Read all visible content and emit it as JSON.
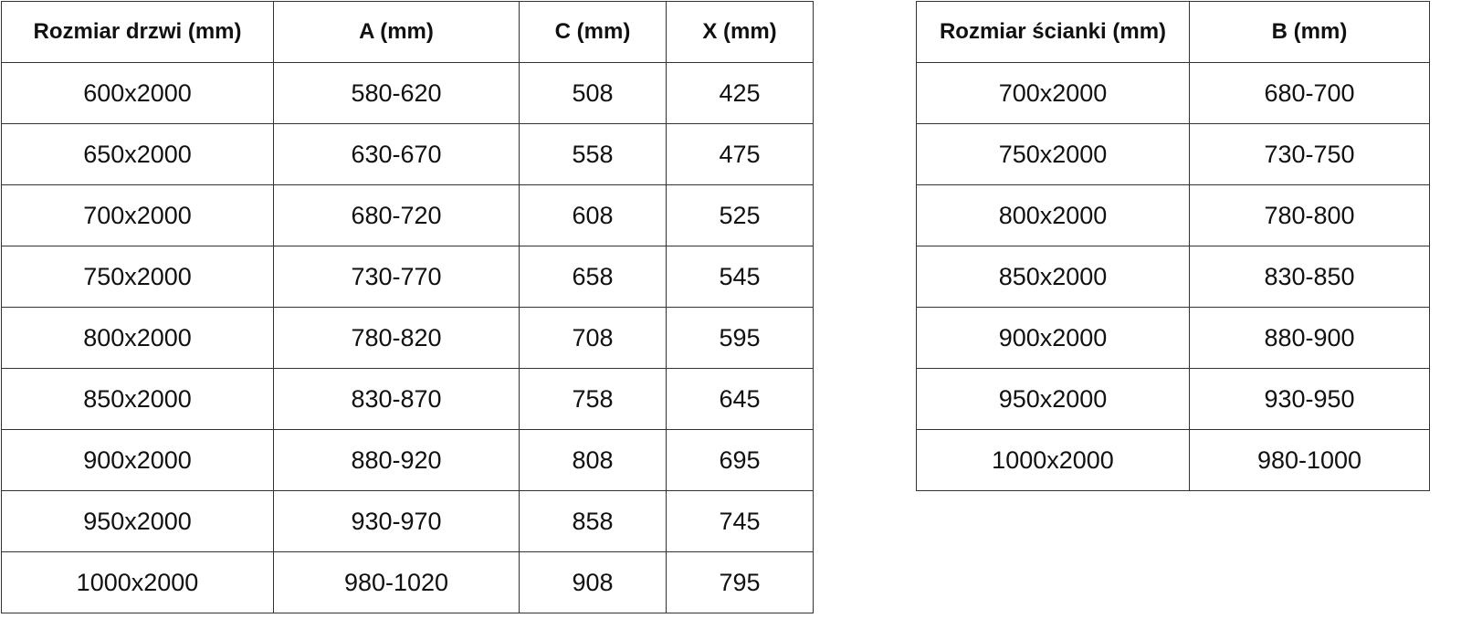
{
  "door_table": {
    "headers": [
      "Rozmiar drzwi (mm)",
      "A (mm)",
      "C (mm)",
      "X (mm)"
    ],
    "rows": [
      [
        "600x2000",
        "580-620",
        "508",
        "425"
      ],
      [
        "650x2000",
        "630-670",
        "558",
        "475"
      ],
      [
        "700x2000",
        "680-720",
        "608",
        "525"
      ],
      [
        "750x2000",
        "730-770",
        "658",
        "545"
      ],
      [
        "800x2000",
        "780-820",
        "708",
        "595"
      ],
      [
        "850x2000",
        "830-870",
        "758",
        "645"
      ],
      [
        "900x2000",
        "880-920",
        "808",
        "695"
      ],
      [
        "950x2000",
        "930-970",
        "858",
        "745"
      ],
      [
        "1000x2000",
        "980-1020",
        "908",
        "795"
      ]
    ]
  },
  "wall_table": {
    "headers": [
      "Rozmiar ścianki (mm)",
      "B (mm)"
    ],
    "rows": [
      [
        "700x2000",
        "680-700"
      ],
      [
        "750x2000",
        "730-750"
      ],
      [
        "800x2000",
        "780-800"
      ],
      [
        "850x2000",
        "830-850"
      ],
      [
        "900x2000",
        "880-900"
      ],
      [
        "950x2000",
        "930-950"
      ],
      [
        "1000x2000",
        "980-1000"
      ]
    ]
  }
}
